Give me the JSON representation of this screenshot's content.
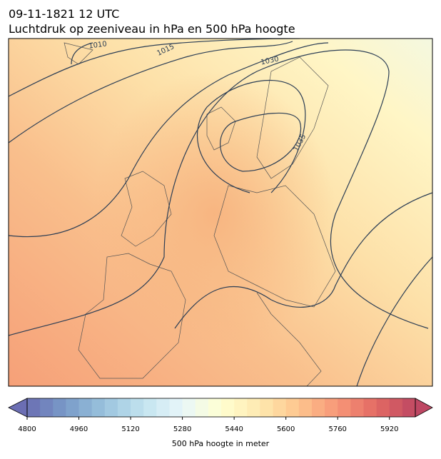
{
  "header": {
    "title": "09-11-1821 12 UTC",
    "subtitle": "Luchtdruk op zeeniveau in hPa en 500 hPa hoogte"
  },
  "contour_labels": [
    1010,
    1015,
    1030,
    1035
  ],
  "colorbar": {
    "label": "500 hPa hoogte in meter",
    "lim": [
      4800,
      6000
    ],
    "ticks": [
      4800,
      4960,
      5120,
      5280,
      5440,
      5600,
      5760,
      5920
    ]
  }
}
